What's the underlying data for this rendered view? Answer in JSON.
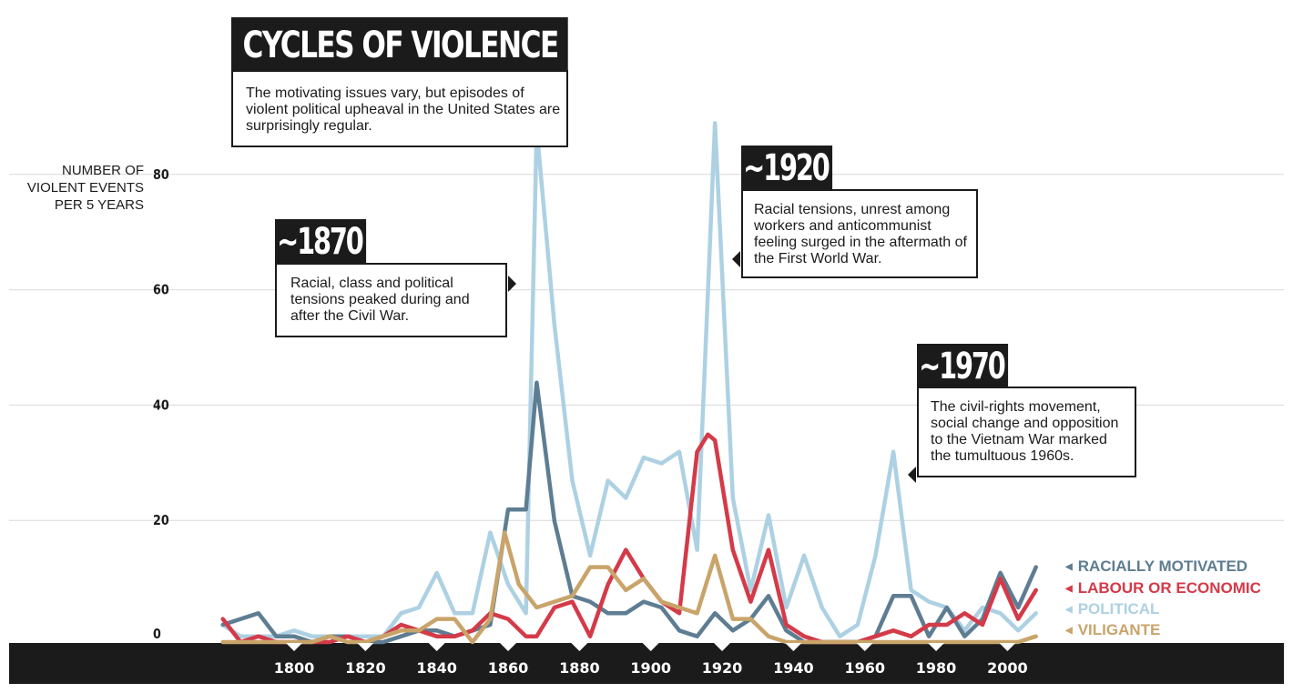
{
  "title": "CYCLES OF VIOLENCE",
  "intro": "The motivating issues vary, but episodes of violent political upheaval in the United States are surprisingly regular.",
  "annotations": [
    {
      "tag": "~1870",
      "text": "Racial, class and political tensions peaked during and after the Civil War."
    },
    {
      "tag": "~1920",
      "text": "Racial tensions, unrest among workers and anticommunist feeling surged in the aftermath of the First World War."
    },
    {
      "tag": "~1970",
      "text": "The civil-rights movement, social change and opposition to the Vietnam War marked the tumultuous 1960s."
    }
  ],
  "legend": {
    "racial": "RACIALLY MOTIVATED",
    "labour": "LABOUR OR ECONOMIC",
    "political": "POLITICAL",
    "vigilante": "VILIGANTE"
  },
  "chart_data": {
    "type": "line",
    "ylabel": "NUMBER OF VIOLENT EVENTS PER 5 YEARS",
    "ylim": [
      0,
      80
    ],
    "yticks": [
      0,
      20,
      40,
      60,
      80
    ],
    "xticks": [
      1800,
      1820,
      1840,
      1860,
      1880,
      1900,
      1920,
      1940,
      1960,
      1980,
      2000
    ],
    "grid": true,
    "legend_position": "right",
    "colors": {
      "political": "#add1e3",
      "racial": "#5e7d92",
      "labour": "#d43a48",
      "vigilante": "#c9a46a",
      "axis_band": "#1b1b1b"
    },
    "series": [
      {
        "key": "political",
        "name": "POLITICAL",
        "points": [
          [
            1780,
            3
          ],
          [
            1785,
            1
          ],
          [
            1790,
            1
          ],
          [
            1795,
            1
          ],
          [
            1800,
            2
          ],
          [
            1805,
            1
          ],
          [
            1810,
            1
          ],
          [
            1815,
            1
          ],
          [
            1820,
            1
          ],
          [
            1825,
            1
          ],
          [
            1830,
            5
          ],
          [
            1835,
            6
          ],
          [
            1840,
            12
          ],
          [
            1845,
            5
          ],
          [
            1850,
            5
          ],
          [
            1855,
            19
          ],
          [
            1860,
            10
          ],
          [
            1865,
            5
          ],
          [
            1868,
            89
          ],
          [
            1873,
            55
          ],
          [
            1878,
            28
          ],
          [
            1883,
            15
          ],
          [
            1888,
            28
          ],
          [
            1893,
            25
          ],
          [
            1898,
            32
          ],
          [
            1903,
            31
          ],
          [
            1908,
            33
          ],
          [
            1913,
            16
          ],
          [
            1918,
            90
          ],
          [
            1923,
            25
          ],
          [
            1928,
            9
          ],
          [
            1933,
            22
          ],
          [
            1938,
            6
          ],
          [
            1943,
            15
          ],
          [
            1948,
            6
          ],
          [
            1953,
            1
          ],
          [
            1958,
            3
          ],
          [
            1963,
            15
          ],
          [
            1968,
            33
          ],
          [
            1973,
            9
          ],
          [
            1978,
            7
          ],
          [
            1983,
            6
          ],
          [
            1988,
            2
          ],
          [
            1993,
            6
          ],
          [
            1998,
            5
          ],
          [
            2003,
            2
          ],
          [
            2008,
            5
          ]
        ]
      },
      {
        "key": "racial",
        "name": "RACIALLY MOTIVATED",
        "points": [
          [
            1780,
            3
          ],
          [
            1785,
            4
          ],
          [
            1790,
            5
          ],
          [
            1795,
            1
          ],
          [
            1800,
            1
          ],
          [
            1805,
            0
          ],
          [
            1810,
            1
          ],
          [
            1815,
            1
          ],
          [
            1820,
            0
          ],
          [
            1825,
            0
          ],
          [
            1830,
            1
          ],
          [
            1835,
            2
          ],
          [
            1840,
            2
          ],
          [
            1845,
            1
          ],
          [
            1850,
            2
          ],
          [
            1855,
            3
          ],
          [
            1860,
            23
          ],
          [
            1865,
            23
          ],
          [
            1868,
            45
          ],
          [
            1873,
            21
          ],
          [
            1878,
            8
          ],
          [
            1883,
            7
          ],
          [
            1888,
            5
          ],
          [
            1893,
            5
          ],
          [
            1898,
            7
          ],
          [
            1903,
            6
          ],
          [
            1908,
            2
          ],
          [
            1913,
            1
          ],
          [
            1918,
            5
          ],
          [
            1923,
            2
          ],
          [
            1928,
            4
          ],
          [
            1933,
            8
          ],
          [
            1938,
            2
          ],
          [
            1943,
            0
          ],
          [
            1948,
            0
          ],
          [
            1953,
            0
          ],
          [
            1958,
            0
          ],
          [
            1963,
            1
          ],
          [
            1968,
            8
          ],
          [
            1973,
            8
          ],
          [
            1978,
            1
          ],
          [
            1983,
            6
          ],
          [
            1988,
            1
          ],
          [
            1993,
            4
          ],
          [
            1998,
            12
          ],
          [
            2003,
            6
          ],
          [
            2008,
            13
          ]
        ]
      },
      {
        "key": "labour",
        "name": "LABOUR OR ECONOMIC",
        "points": [
          [
            1780,
            4
          ],
          [
            1785,
            0
          ],
          [
            1790,
            1
          ],
          [
            1795,
            0
          ],
          [
            1800,
            0
          ],
          [
            1805,
            0
          ],
          [
            1810,
            0
          ],
          [
            1815,
            1
          ],
          [
            1820,
            0
          ],
          [
            1825,
            1
          ],
          [
            1830,
            3
          ],
          [
            1835,
            2
          ],
          [
            1840,
            1
          ],
          [
            1845,
            1
          ],
          [
            1850,
            2
          ],
          [
            1855,
            5
          ],
          [
            1860,
            4
          ],
          [
            1865,
            1
          ],
          [
            1868,
            1
          ],
          [
            1873,
            6
          ],
          [
            1878,
            7
          ],
          [
            1883,
            1
          ],
          [
            1888,
            10
          ],
          [
            1893,
            16
          ],
          [
            1898,
            11
          ],
          [
            1903,
            7
          ],
          [
            1908,
            5
          ],
          [
            1913,
            33
          ],
          [
            1916,
            36
          ],
          [
            1918,
            35
          ],
          [
            1923,
            16
          ],
          [
            1928,
            7
          ],
          [
            1933,
            16
          ],
          [
            1938,
            3
          ],
          [
            1943,
            1
          ],
          [
            1948,
            0
          ],
          [
            1953,
            0
          ],
          [
            1958,
            0
          ],
          [
            1963,
            1
          ],
          [
            1968,
            2
          ],
          [
            1973,
            1
          ],
          [
            1978,
            3
          ],
          [
            1983,
            3
          ],
          [
            1988,
            5
          ],
          [
            1993,
            3
          ],
          [
            1998,
            11
          ],
          [
            2003,
            4
          ],
          [
            2008,
            9
          ]
        ]
      },
      {
        "key": "vigilante",
        "name": "VILIGANTE",
        "points": [
          [
            1780,
            0
          ],
          [
            1785,
            0
          ],
          [
            1790,
            0
          ],
          [
            1795,
            0
          ],
          [
            1800,
            0
          ],
          [
            1805,
            0
          ],
          [
            1810,
            1
          ],
          [
            1815,
            0
          ],
          [
            1820,
            0
          ],
          [
            1825,
            1
          ],
          [
            1830,
            2
          ],
          [
            1835,
            2
          ],
          [
            1840,
            4
          ],
          [
            1845,
            4
          ],
          [
            1850,
            0
          ],
          [
            1855,
            4
          ],
          [
            1859,
            19
          ],
          [
            1863,
            10
          ],
          [
            1868,
            6
          ],
          [
            1873,
            7
          ],
          [
            1878,
            8
          ],
          [
            1883,
            13
          ],
          [
            1888,
            13
          ],
          [
            1893,
            9
          ],
          [
            1898,
            11
          ],
          [
            1903,
            7
          ],
          [
            1908,
            6
          ],
          [
            1913,
            5
          ],
          [
            1918,
            15
          ],
          [
            1923,
            4
          ],
          [
            1928,
            4
          ],
          [
            1933,
            1
          ],
          [
            1938,
            0
          ],
          [
            1943,
            0
          ],
          [
            1948,
            0
          ],
          [
            1953,
            0
          ],
          [
            1958,
            0
          ],
          [
            1963,
            0
          ],
          [
            1968,
            0
          ],
          [
            1973,
            0
          ],
          [
            1978,
            0
          ],
          [
            1983,
            0
          ],
          [
            1988,
            0
          ],
          [
            1993,
            0
          ],
          [
            1998,
            0
          ],
          [
            2003,
            0
          ],
          [
            2008,
            1
          ]
        ]
      }
    ]
  }
}
